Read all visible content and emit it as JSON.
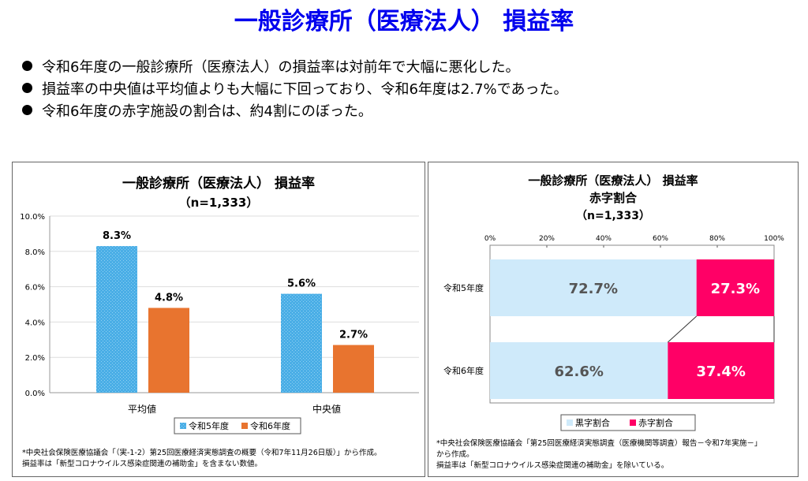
{
  "page_title": "一般診療所（医療法人） 損益率",
  "bullets": [
    "令和6年度の一般診療所（医療法人）の損益率は対前年で大幅に悪化した。",
    "損益率の中央値は平均値よりも大幅に下回っており、令和6年度は2.7%であった。",
    "令和6年度の赤字施設の割合は、約4割にのぼった。"
  ],
  "chart_data": [
    {
      "type": "bar",
      "title": "一般診療所（医療法人） 損益率",
      "subtitle": "（n=1,333）",
      "categories": [
        "平均値",
        "中央値"
      ],
      "series": [
        {
          "name": "令和5年度",
          "values": [
            8.3,
            5.6
          ],
          "color": "#4aaee6"
        },
        {
          "name": "令和6年度",
          "values": [
            4.8,
            2.7
          ],
          "color": "#e8742f"
        }
      ],
      "data_labels": [
        [
          "8.3%",
          "5.6%"
        ],
        [
          "4.8%",
          "2.7%"
        ]
      ],
      "ylim": [
        0,
        10
      ],
      "yticks": [
        "0.0%",
        "2.0%",
        "4.0%",
        "6.0%",
        "8.0%",
        "10.0%"
      ],
      "grid": true,
      "legend": "bottom"
    },
    {
      "type": "bar",
      "orientation": "horizontal-stacked-100",
      "title": "一般診療所（医療法人） 損益率",
      "title2": "赤字割合",
      "subtitle": "（n=1,333）",
      "categories": [
        "令和5年度",
        "令和6年度"
      ],
      "series": [
        {
          "name": "黒字割合",
          "values": [
            72.7,
            62.6
          ],
          "color": "#cfeafa"
        },
        {
          "name": "赤字割合",
          "values": [
            27.3,
            37.4
          ],
          "color": "#ff0066"
        }
      ],
      "data_labels": [
        [
          "72.7%",
          "62.6%"
        ],
        [
          "27.3%",
          "37.4%"
        ]
      ],
      "xlim": [
        0,
        100
      ],
      "xticks": [
        "0%",
        "20%",
        "40%",
        "60%",
        "80%",
        "100%"
      ],
      "legend": "bottom"
    }
  ],
  "notes": {
    "left": [
      "*中央社会保険医療協議会「（実-1-2）第25回医療経済実態調査の概要（令和7年11月26日版）」から作成。",
      "損益率は「新型コロナウイルス感染症関連の補助金」を含まない数値。"
    ],
    "right": [
      "*中央社会保険医療協議会「第25回医療経済実態調査（医療機関等調査）報告－令和7年実施－」",
      "から作成。",
      "損益率は「新型コロナウイルス感染症関連の補助金」を除いている。"
    ]
  }
}
